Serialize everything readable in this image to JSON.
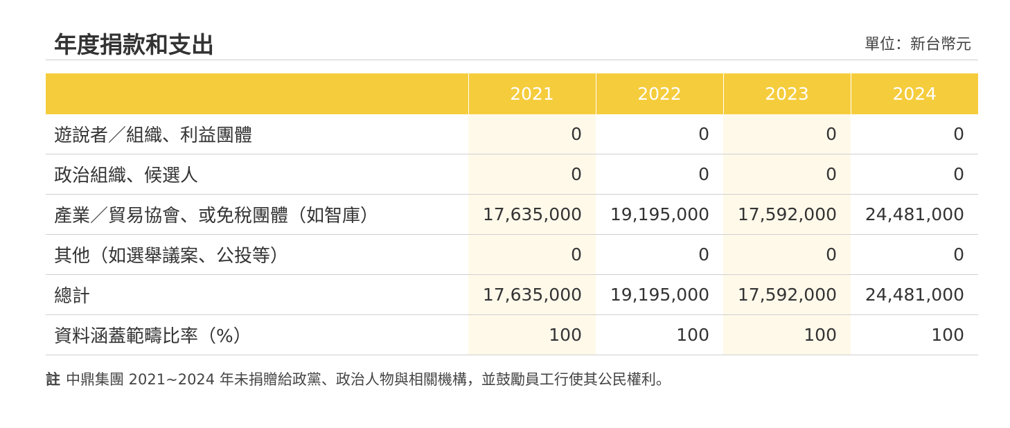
{
  "header": {
    "title": "年度捐款和支出",
    "unit": "單位：新台幣元"
  },
  "table": {
    "columns": [
      "2021",
      "2022",
      "2023",
      "2024"
    ],
    "rows": [
      [
        "遊說者／組織、利益團體",
        "0",
        "0",
        "0",
        "0"
      ],
      [
        "政治組織、候選人",
        "0",
        "0",
        "0",
        "0"
      ],
      [
        "產業／貿易協會、或免稅團體（如智庫）",
        "17,635,000",
        "19,195,000",
        "17,592,000",
        "24,481,000"
      ],
      [
        "其他（如選舉議案、公投等）",
        "0",
        "0",
        "0",
        "0"
      ],
      [
        "總計",
        "17,635,000",
        "19,195,000",
        "17,592,000",
        "24,481,000"
      ],
      [
        "資料涵蓋範疇比率（%）",
        "100",
        "100",
        "100",
        "100"
      ]
    ]
  },
  "note": {
    "label": "註",
    "text": "中鼎集團 2021~2024 年未捐贈給政黨、政治人物與相關機構，並鼓勵員工行使其公民權利。"
  }
}
